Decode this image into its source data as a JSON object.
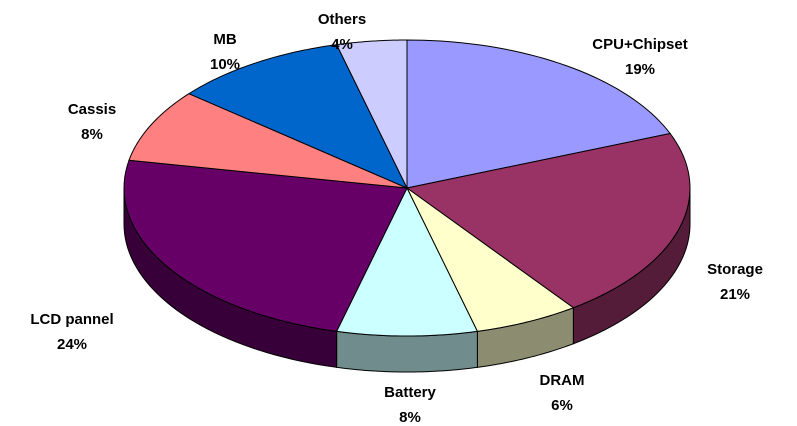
{
  "chart_data": {
    "type": "pie",
    "three_d": true,
    "categories": [
      "CPU+Chipset",
      "Storage",
      "DRAM",
      "Battery",
      "LCD pannel",
      "Cassis",
      "MB",
      "Others"
    ],
    "values": [
      19,
      21,
      6,
      8,
      24,
      8,
      10,
      4
    ],
    "value_labels": [
      "19%",
      "21%",
      "6%",
      "8%",
      "24%",
      "8%",
      "10%",
      "4%"
    ],
    "colors": [
      "#9999ff",
      "#993366",
      "#ffffcc",
      "#ccffff",
      "#660066",
      "#ff8080",
      "#0066cc",
      "#ccccff"
    ]
  }
}
